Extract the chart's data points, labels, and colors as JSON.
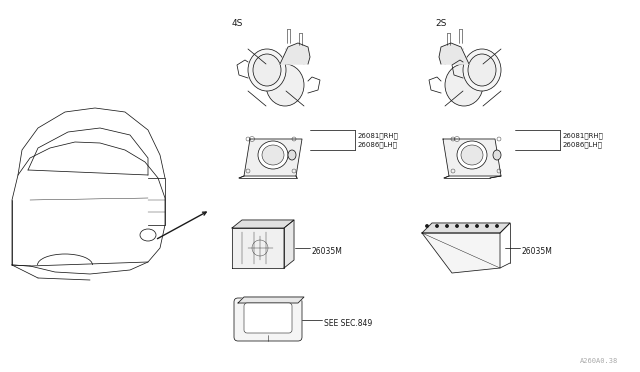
{
  "bg_color": "#ffffff",
  "line_color": "#1a1a1a",
  "fig_width": 6.4,
  "fig_height": 3.72,
  "dpi": 100,
  "label_4s": "4S",
  "label_2s": "2S",
  "part_rh": "26081〈RH〉",
  "part_lh": "26086〈LH〉",
  "part_26035M": "26035M",
  "part_see_sec": "SEE SEC.849",
  "watermark": "A260A0.38",
  "font_size_small": 5.5,
  "font_size_label": 6.5,
  "font_size_watermark": 5.0
}
